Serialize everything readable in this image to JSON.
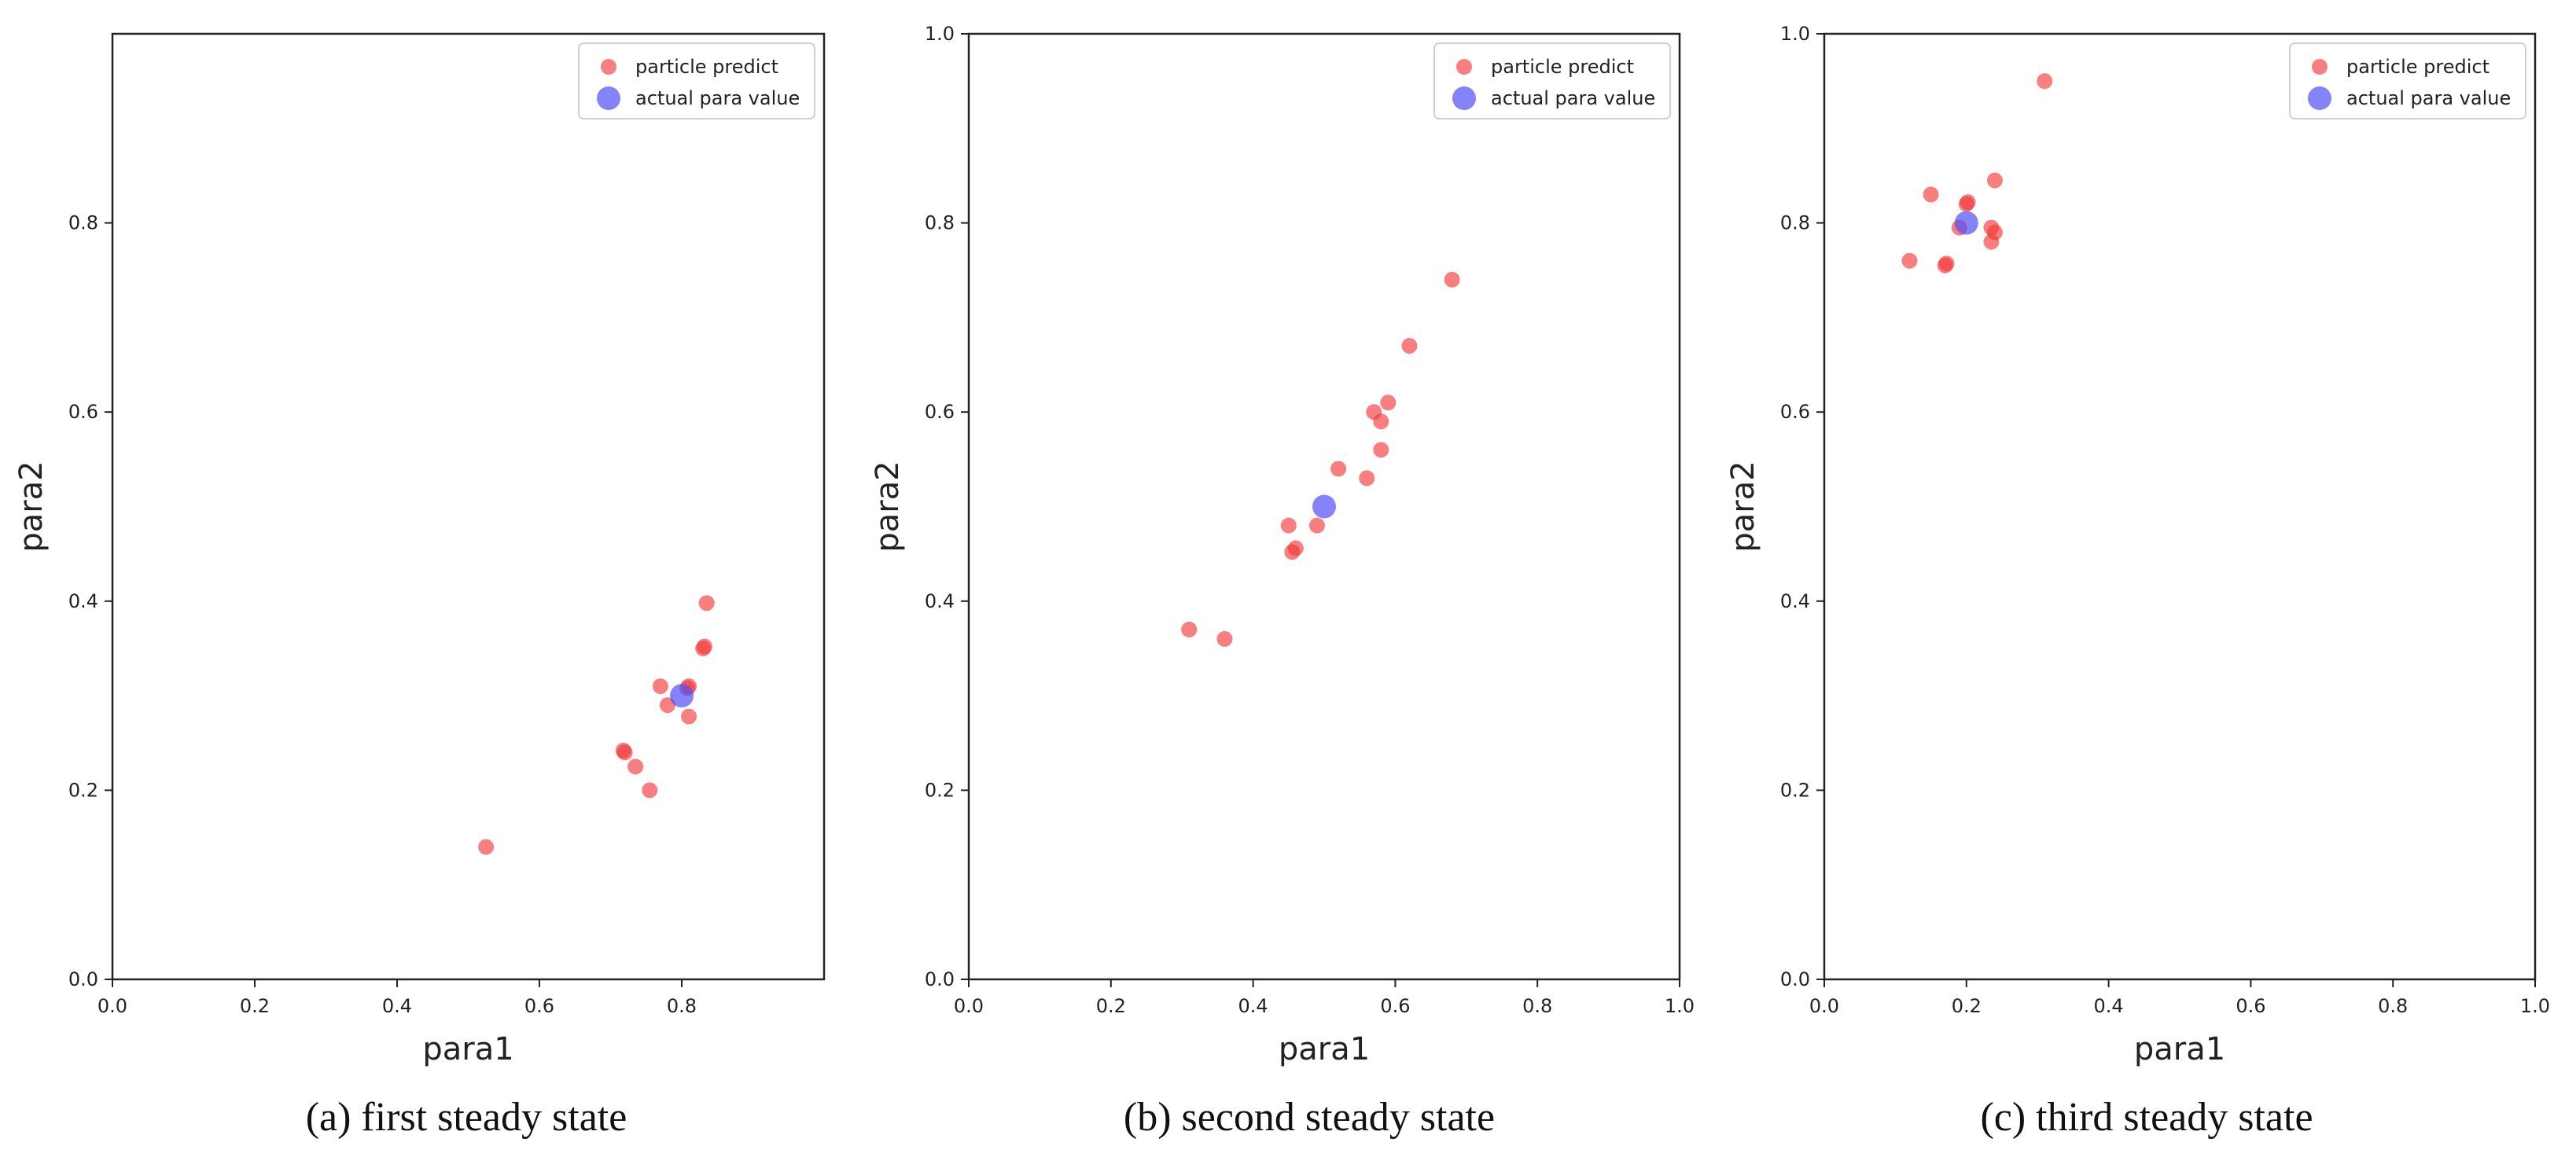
{
  "colors": {
    "particle": "#f23b3b",
    "actual": "#5050f5",
    "axis": "#222222"
  },
  "legend": {
    "particle_label": "particle predict",
    "actual_label": "actual para value"
  },
  "captions": {
    "a": "(a) first steady state",
    "b": "(b) second steady state",
    "c": "(c) third steady state"
  },
  "chart_data": [
    {
      "type": "scatter",
      "xlabel": "para1",
      "ylabel": "para2",
      "xlim": [
        0,
        1
      ],
      "ylim": [
        0,
        1
      ],
      "xticks": [
        "0.0",
        "0.2",
        "0.4",
        "0.6",
        "0.8"
      ],
      "yticks": [
        "0.0",
        "0.2",
        "0.4",
        "0.6",
        "0.8"
      ],
      "grid": false,
      "legend_position": "top-right",
      "series": [
        {
          "name": "particle predict",
          "points": [
            [
              0.525,
              0.14
            ],
            [
              0.72,
              0.24
            ],
            [
              0.718,
              0.242
            ],
            [
              0.735,
              0.225
            ],
            [
              0.755,
              0.2
            ],
            [
              0.77,
              0.31
            ],
            [
              0.78,
              0.29
            ],
            [
              0.81,
              0.278
            ],
            [
              0.81,
              0.31
            ],
            [
              0.808,
              0.308
            ],
            [
              0.83,
              0.35
            ],
            [
              0.832,
              0.352
            ],
            [
              0.835,
              0.398
            ]
          ]
        },
        {
          "name": "actual para value",
          "points": [
            [
              0.8,
              0.3
            ]
          ]
        }
      ]
    },
    {
      "type": "scatter",
      "xlabel": "para1",
      "ylabel": "para2",
      "xlim": [
        0,
        1
      ],
      "ylim": [
        0,
        1
      ],
      "xticks": [
        "0.0",
        "0.2",
        "0.4",
        "0.6",
        "0.8",
        "1.0"
      ],
      "yticks": [
        "0.0",
        "0.2",
        "0.4",
        "0.6",
        "0.8",
        "1.0"
      ],
      "grid": false,
      "legend_position": "top-right",
      "series": [
        {
          "name": "particle predict",
          "points": [
            [
              0.31,
              0.37
            ],
            [
              0.36,
              0.36
            ],
            [
              0.45,
              0.48
            ],
            [
              0.455,
              0.452
            ],
            [
              0.46,
              0.456
            ],
            [
              0.49,
              0.48
            ],
            [
              0.52,
              0.54
            ],
            [
              0.56,
              0.53
            ],
            [
              0.57,
              0.6
            ],
            [
              0.58,
              0.59
            ],
            [
              0.58,
              0.56
            ],
            [
              0.59,
              0.61
            ],
            [
              0.62,
              0.67
            ],
            [
              0.68,
              0.74
            ]
          ]
        },
        {
          "name": "actual para value",
          "points": [
            [
              0.5,
              0.5
            ]
          ]
        }
      ]
    },
    {
      "type": "scatter",
      "xlabel": "para1",
      "ylabel": "para2",
      "xlim": [
        0,
        1
      ],
      "ylim": [
        0,
        1
      ],
      "xticks": [
        "0.0",
        "0.2",
        "0.4",
        "0.6",
        "0.8",
        "1.0"
      ],
      "yticks": [
        "0.0",
        "0.2",
        "0.4",
        "0.6",
        "0.8",
        "1.0"
      ],
      "grid": false,
      "legend_position": "top-right",
      "series": [
        {
          "name": "particle predict",
          "points": [
            [
              0.12,
              0.76
            ],
            [
              0.15,
              0.83
            ],
            [
              0.17,
              0.755
            ],
            [
              0.172,
              0.757
            ],
            [
              0.19,
              0.795
            ],
            [
              0.2,
              0.82
            ],
            [
              0.202,
              0.822
            ],
            [
              0.235,
              0.795
            ],
            [
              0.235,
              0.78
            ],
            [
              0.24,
              0.79
            ],
            [
              0.24,
              0.845
            ],
            [
              0.31,
              0.95
            ]
          ]
        },
        {
          "name": "actual para value",
          "points": [
            [
              0.2,
              0.8
            ]
          ]
        }
      ]
    }
  ]
}
